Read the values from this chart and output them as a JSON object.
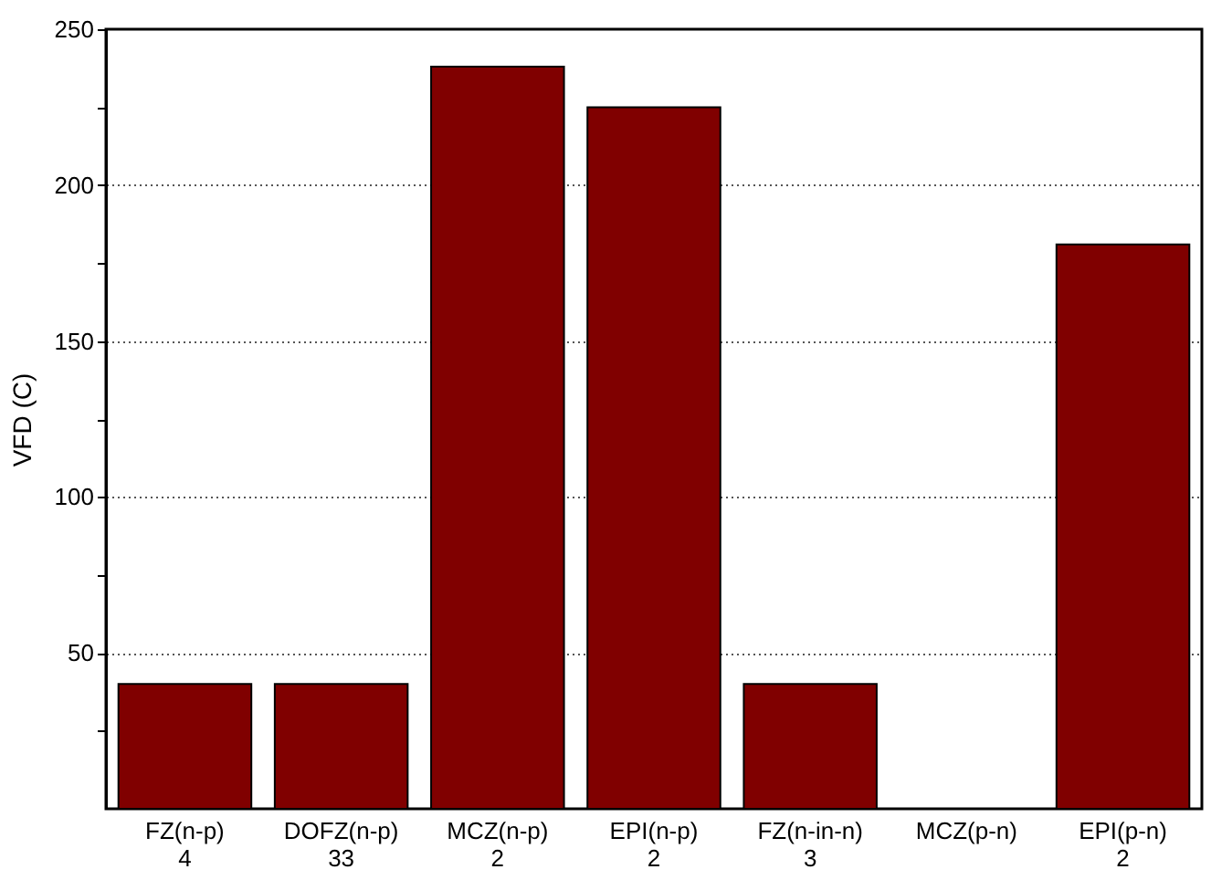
{
  "chart_data": {
    "type": "bar",
    "categories": [
      "FZ(n-p)\n4",
      "DOFZ(n-p)\n33",
      "MCZ(n-p)\n2",
      "EPI(n-p)\n2",
      "FZ(n-in-n)\n3",
      "MCZ(p-n)",
      "EPI(p-n)\n2"
    ],
    "values": [
      40,
      40,
      238,
      225,
      40,
      null,
      181
    ],
    "color": "#800000",
    "ylabel": "VFD (C)",
    "ylim": [
      0,
      250
    ],
    "yticks": [
      {
        "value": 25,
        "label": null
      },
      50,
      {
        "value": 75,
        "label": null
      },
      100,
      {
        "value": 125,
        "label": null
      },
      150,
      {
        "value": 175,
        "label": null
      },
      200,
      {
        "value": 225,
        "label": null
      },
      250
    ],
    "grid": "y"
  }
}
